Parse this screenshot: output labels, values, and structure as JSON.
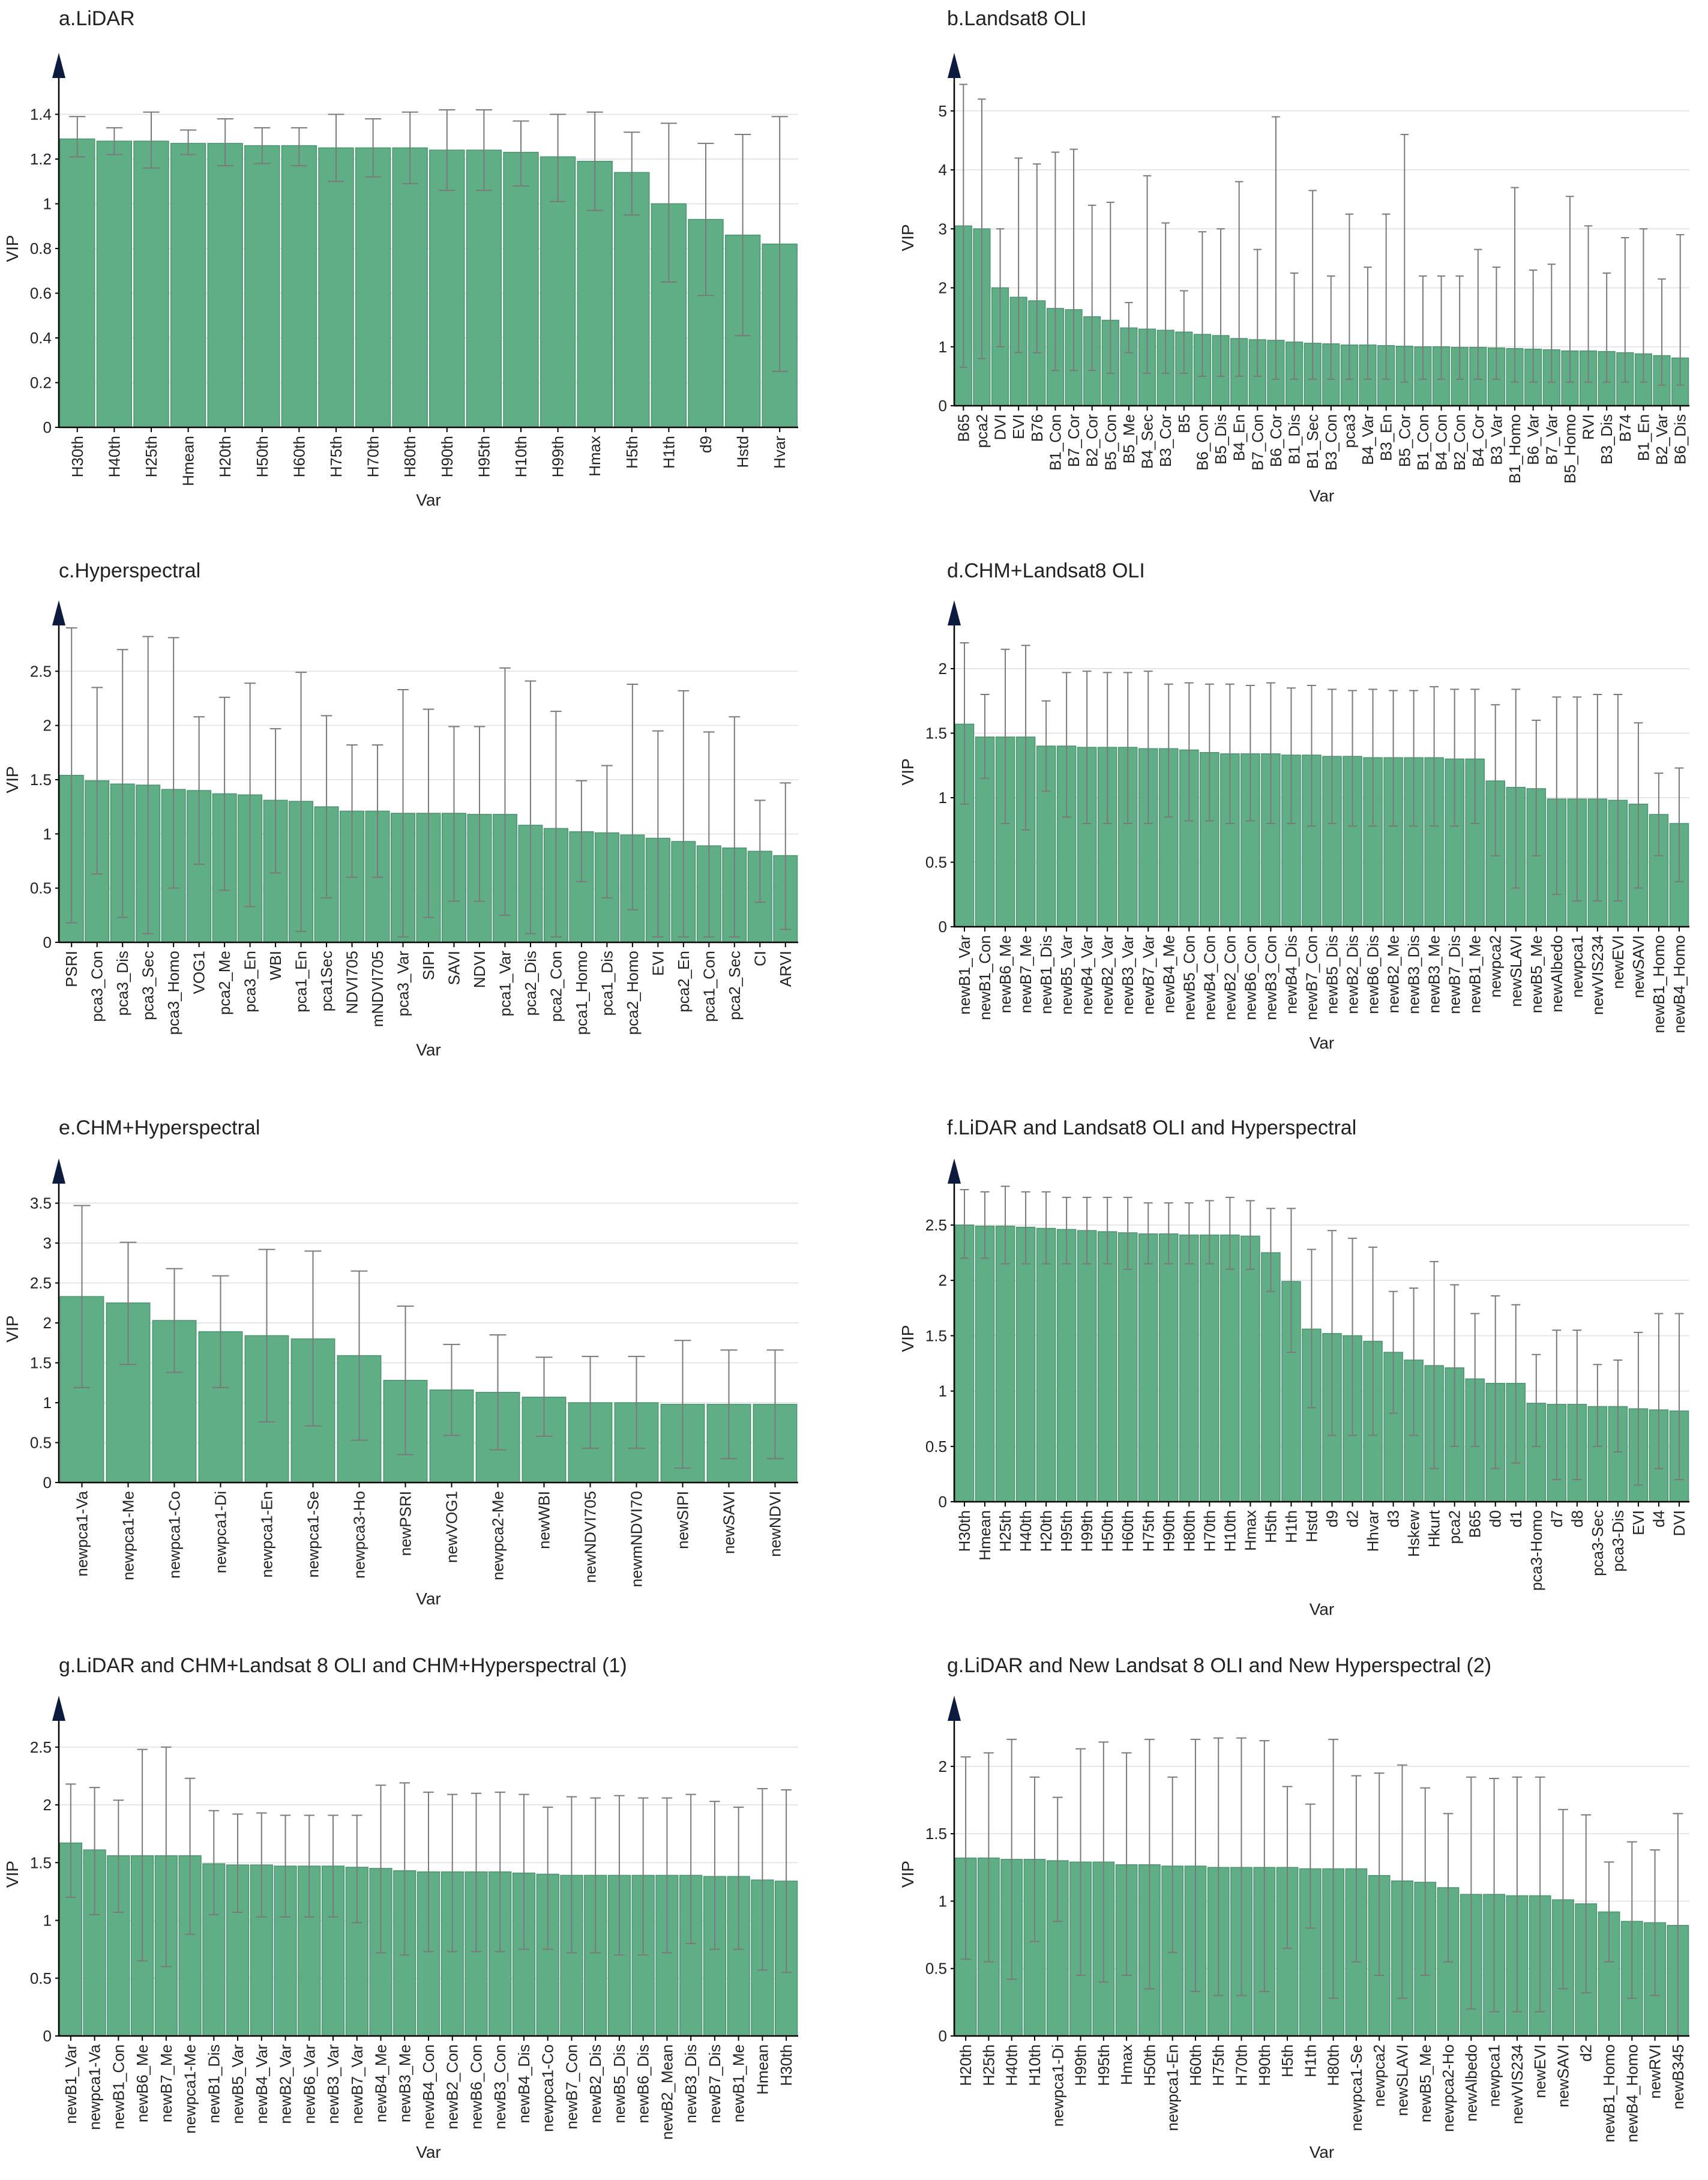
{
  "colors": {
    "bar": "#5fae85",
    "bar_edge": "#4a9470",
    "error": "#7a7a7a",
    "axis": "#000000",
    "arrow": "#0d1b3e",
    "grid": "#e6e6e6",
    "text": "#222222"
  },
  "chart_data": [
    {
      "type": "bar",
      "title": "a.LiDAR",
      "xlabel": "Var",
      "ylabel": "VIP",
      "ylim": [
        0,
        1.6
      ],
      "yticks": [
        "0",
        "0.2",
        "0.4",
        "0.6",
        "0.8",
        "1",
        "1.2",
        "1.4"
      ],
      "categories": [
        "H30th",
        "H40th",
        "H25th",
        "Hmean",
        "H20th",
        "H50th",
        "H60th",
        "H75th",
        "H70th",
        "H80th",
        "H90th",
        "H95th",
        "H10th",
        "H99th",
        "Hmax",
        "H5th",
        "H1th",
        "d9",
        "Hstd",
        "Hvar"
      ],
      "values": [
        1.29,
        1.28,
        1.28,
        1.27,
        1.27,
        1.26,
        1.26,
        1.25,
        1.25,
        1.25,
        1.24,
        1.24,
        1.23,
        1.21,
        1.19,
        1.14,
        1.0,
        0.93,
        0.86,
        0.82
      ],
      "err_low": [
        1.21,
        1.22,
        1.16,
        1.22,
        1.17,
        1.18,
        1.17,
        1.1,
        1.12,
        1.09,
        1.06,
        1.06,
        1.08,
        1.01,
        0.97,
        0.95,
        0.65,
        0.59,
        0.41,
        0.25
      ],
      "err_high": [
        1.39,
        1.34,
        1.41,
        1.33,
        1.38,
        1.34,
        1.34,
        1.4,
        1.38,
        1.41,
        1.42,
        1.42,
        1.37,
        1.4,
        1.41,
        1.32,
        1.36,
        1.27,
        1.31,
        1.39
      ]
    },
    {
      "type": "bar",
      "title": "b.Landsat8 OLI",
      "xlabel": "Var",
      "ylabel": "VIP",
      "ylim": [
        0,
        5.7
      ],
      "yticks": [
        "0",
        "1",
        "2",
        "3",
        "4",
        "5"
      ],
      "categories": [
        "B65",
        "pca2",
        "DVI",
        "EVI",
        "B76",
        "B1_Con",
        "B7_Cor",
        "B2_Cor",
        "B5_Con",
        "B5_Me",
        "B4_Sec",
        "B3_Cor",
        "B5",
        "B6_Con",
        "B5_Dis",
        "B4_En",
        "B7_Con",
        "B6_Cor",
        "B1_Dis",
        "B1_Sec",
        "B3_Con",
        "pca3",
        "B4_Var",
        "B3_En",
        "B5_Cor",
        "B1_Con",
        "B4_Con",
        "B2_Con",
        "B4_Cor",
        "B3_Var",
        "B1_Homo",
        "B6_Var",
        "B7_Var",
        "B5_Homo",
        "RVI",
        "B3_Dis",
        "B74",
        "B1_En",
        "B2_Var",
        "B6_Dis"
      ],
      "values": [
        3.05,
        3.0,
        2.0,
        1.84,
        1.78,
        1.65,
        1.63,
        1.51,
        1.45,
        1.32,
        1.3,
        1.28,
        1.25,
        1.21,
        1.19,
        1.14,
        1.12,
        1.11,
        1.08,
        1.06,
        1.05,
        1.03,
        1.03,
        1.02,
        1.01,
        1.0,
        1.0,
        0.99,
        0.99,
        0.98,
        0.97,
        0.96,
        0.95,
        0.93,
        0.93,
        0.92,
        0.9,
        0.88,
        0.85,
        0.81
      ],
      "err_low": [
        0.65,
        0.8,
        1.0,
        0.9,
        0.9,
        0.6,
        0.6,
        0.6,
        0.55,
        0.9,
        0.55,
        0.55,
        0.55,
        0.5,
        0.5,
        0.5,
        0.5,
        0.45,
        0.45,
        0.45,
        0.45,
        0.45,
        0.45,
        0.45,
        0.4,
        0.45,
        0.45,
        0.45,
        0.45,
        0.45,
        0.4,
        0.4,
        0.4,
        0.4,
        0.4,
        0.4,
        0.4,
        0.4,
        0.35,
        0.35
      ],
      "err_high": [
        5.45,
        5.2,
        3.0,
        4.2,
        4.1,
        4.3,
        4.35,
        3.4,
        3.45,
        1.75,
        3.9,
        3.1,
        1.95,
        2.95,
        3.0,
        3.8,
        2.65,
        4.9,
        2.25,
        3.65,
        2.2,
        3.25,
        2.35,
        3.25,
        4.6,
        2.2,
        2.2,
        2.2,
        2.65,
        2.35,
        3.7,
        2.3,
        2.4,
        3.55,
        3.05,
        2.25,
        2.85,
        3.0,
        2.15,
        2.9
      ]
    },
    {
      "type": "bar",
      "title": "c.Hyperspectral",
      "xlabel": "Var",
      "ylabel": "VIP",
      "ylim": [
        0,
        3.0
      ],
      "yticks": [
        "0",
        "0.5",
        "1",
        "1.5",
        "2",
        "2.5"
      ],
      "categories": [
        "PSRI",
        "pca3_Con",
        "pca3_Dis",
        "pca3_Sec",
        "pca3_Homo",
        "VOG1",
        "pca2_Me",
        "pca3_En",
        "WBI",
        "pca1_En",
        "pca1Sec",
        "NDVI705",
        "mNDVI705",
        "pca3_Var",
        "SIPI",
        "SAVI",
        "NDVI",
        "pca1_Var",
        "pca2_Dis",
        "pca2_Con",
        "pca1_Homo",
        "pca1_Dis",
        "pca2_Homo",
        "EVI",
        "pca2_En",
        "pca1_Con",
        "pca2_Sec",
        "CI",
        "ARVI"
      ],
      "values": [
        1.54,
        1.49,
        1.46,
        1.45,
        1.41,
        1.4,
        1.37,
        1.36,
        1.31,
        1.3,
        1.25,
        1.21,
        1.21,
        1.19,
        1.19,
        1.19,
        1.18,
        1.18,
        1.08,
        1.05,
        1.02,
        1.01,
        0.99,
        0.96,
        0.93,
        0.89,
        0.87,
        0.84,
        0.8
      ],
      "err_low": [
        0.18,
        0.63,
        0.23,
        0.08,
        0.5,
        0.72,
        0.48,
        0.33,
        0.64,
        0.1,
        0.41,
        0.6,
        0.6,
        0.05,
        0.23,
        0.38,
        0.38,
        0.25,
        0.08,
        0.05,
        0.56,
        0.41,
        0.3,
        0.05,
        0.05,
        0.05,
        0.05,
        0.37,
        0.12
      ],
      "err_high": [
        2.9,
        2.35,
        2.7,
        2.82,
        2.81,
        2.08,
        2.26,
        2.39,
        1.97,
        2.49,
        2.09,
        1.82,
        1.82,
        2.33,
        2.15,
        1.99,
        1.99,
        2.53,
        2.41,
        2.13,
        1.49,
        1.63,
        2.38,
        1.95,
        2.32,
        1.94,
        2.08,
        1.31,
        1.47
      ]
    },
    {
      "type": "bar",
      "title": "d.CHM+Landsat8 OLI",
      "xlabel": "Var",
      "ylabel": "VIP",
      "ylim": [
        0,
        2.4
      ],
      "yticks": [
        "0",
        "0.5",
        "1",
        "1.5",
        "2"
      ],
      "categories": [
        "newB1_Var",
        "newB1_Con",
        "newB6_Me",
        "newB7_Me",
        "newB1_Dis",
        "newB5_Var",
        "newB4_Var",
        "newB2_Var",
        "newB3_Var",
        "newB7_Var",
        "newB4_Me",
        "newB5_Con",
        "newB4_Con",
        "newB2_Con",
        "newB6_Con",
        "newB3_Con",
        "newB4_Dis",
        "newB7_Con",
        "newB5_Dis",
        "newB2_Dis",
        "newB6_Dis",
        "newB2_Me",
        "newB3_Dis",
        "newB3_Me",
        "newB7_Dis",
        "newB1_Me",
        "newpca2",
        "newSLAVI",
        "newB5_Me",
        "newAlbedo",
        "newpca1",
        "newVIS234",
        "newEVI",
        "newSAVI",
        "newB1_Homo",
        "newB4_Homo"
      ],
      "values": [
        1.57,
        1.47,
        1.47,
        1.47,
        1.4,
        1.4,
        1.39,
        1.39,
        1.39,
        1.38,
        1.38,
        1.37,
        1.35,
        1.34,
        1.34,
        1.34,
        1.33,
        1.33,
        1.32,
        1.32,
        1.31,
        1.31,
        1.31,
        1.31,
        1.3,
        1.3,
        1.13,
        1.08,
        1.07,
        0.99,
        0.99,
        0.99,
        0.98,
        0.95,
        0.87,
        0.8
      ],
      "err_low": [
        0.95,
        1.15,
        0.8,
        0.75,
        1.05,
        0.85,
        0.8,
        0.8,
        0.8,
        0.8,
        0.85,
        0.82,
        0.82,
        0.8,
        0.82,
        0.8,
        0.8,
        0.78,
        0.8,
        0.78,
        0.78,
        0.78,
        0.78,
        0.78,
        0.78,
        0.8,
        0.55,
        0.3,
        0.55,
        0.25,
        0.2,
        0.2,
        0.2,
        0.3,
        0.55,
        0.35
      ],
      "err_high": [
        2.2,
        1.8,
        2.15,
        2.18,
        1.75,
        1.97,
        1.98,
        1.97,
        1.97,
        1.98,
        1.88,
        1.89,
        1.88,
        1.88,
        1.87,
        1.89,
        1.85,
        1.87,
        1.84,
        1.83,
        1.84,
        1.83,
        1.83,
        1.86,
        1.84,
        1.84,
        1.72,
        1.84,
        1.6,
        1.78,
        1.78,
        1.8,
        1.8,
        1.58,
        1.19,
        1.23
      ]
    },
    {
      "type": "bar",
      "title": "e.CHM+Hyperspectral",
      "xlabel": "Var",
      "ylabel": "VIP",
      "ylim": [
        0,
        3.85
      ],
      "yticks": [
        "0",
        "0.5",
        "1",
        "1.5",
        "2",
        "2.5",
        "3",
        "3.5"
      ],
      "categories": [
        "newpca1-Va",
        "newpca1-Me",
        "newpca1-Co",
        "newpca1-Di",
        "newpca1-En",
        "newpca1-Se",
        "newpca3-Ho",
        "newPSRI",
        "newVOG1",
        "newpca2-Me",
        "newWBI",
        "newNDVI705",
        "newmNDVI70",
        "newSIPI",
        "newSAVI",
        "newNDVI"
      ],
      "values": [
        2.33,
        2.25,
        2.03,
        1.89,
        1.84,
        1.8,
        1.59,
        1.28,
        1.16,
        1.13,
        1.07,
        1.0,
        1.0,
        0.98,
        0.98,
        0.98
      ],
      "err_low": [
        1.19,
        1.48,
        1.38,
        1.19,
        0.76,
        0.71,
        0.53,
        0.35,
        0.59,
        0.41,
        0.58,
        0.43,
        0.43,
        0.18,
        0.3,
        0.3
      ],
      "err_high": [
        3.47,
        3.01,
        2.68,
        2.59,
        2.92,
        2.9,
        2.65,
        2.21,
        1.73,
        1.85,
        1.57,
        1.58,
        1.58,
        1.78,
        1.66,
        1.66
      ]
    },
    {
      "type": "bar",
      "title": "f.LiDAR and Landsat8 OLI and Hyperspectral",
      "xlabel": "Var",
      "ylabel": "VIP",
      "ylim": [
        0,
        2.95
      ],
      "yticks": [
        "0",
        "0.5",
        "1",
        "1.5",
        "2",
        "2.5"
      ],
      "categories": [
        "H30th",
        "Hmean",
        "H25th",
        "H40th",
        "H20th",
        "H95th",
        "H99th",
        "H50th",
        "H60th",
        "H75th",
        "H90th",
        "H80th",
        "H70th",
        "H10th",
        "Hmax",
        "H5th",
        "H1th",
        "Hstd",
        "d9",
        "d2",
        "Hhvar",
        "d3",
        "Hskew",
        "Hkurt",
        "pca2",
        "B65",
        "d0",
        "d1",
        "pca3-Homo",
        "d7",
        "d8",
        "pca3-Sec",
        "pca3-Dis",
        "EVI",
        "d4",
        "DVI"
      ],
      "values": [
        2.5,
        2.49,
        2.49,
        2.48,
        2.47,
        2.46,
        2.45,
        2.44,
        2.43,
        2.42,
        2.42,
        2.41,
        2.41,
        2.41,
        2.4,
        2.25,
        1.99,
        1.56,
        1.52,
        1.5,
        1.45,
        1.35,
        1.28,
        1.23,
        1.21,
        1.11,
        1.07,
        1.07,
        0.89,
        0.88,
        0.88,
        0.86,
        0.86,
        0.84,
        0.83,
        0.82
      ],
      "err_low": [
        2.2,
        2.2,
        2.15,
        2.15,
        2.15,
        2.15,
        2.15,
        2.15,
        2.1,
        2.15,
        2.15,
        2.15,
        2.15,
        2.1,
        2.1,
        1.9,
        1.35,
        0.85,
        0.6,
        0.6,
        0.6,
        0.8,
        0.6,
        0.3,
        0.5,
        0.5,
        0.3,
        0.35,
        0.5,
        0.2,
        0.2,
        0.5,
        0.45,
        0.15,
        0.3,
        0.2
      ],
      "err_high": [
        2.82,
        2.8,
        2.85,
        2.8,
        2.8,
        2.75,
        2.75,
        2.75,
        2.75,
        2.7,
        2.7,
        2.7,
        2.72,
        2.75,
        2.72,
        2.65,
        2.65,
        2.28,
        2.45,
        2.38,
        2.3,
        1.9,
        1.93,
        2.17,
        1.96,
        1.7,
        1.86,
        1.78,
        1.33,
        1.55,
        1.55,
        1.24,
        1.28,
        1.53,
        1.7,
        1.7
      ]
    },
    {
      "type": "bar",
      "title": "g.LiDAR and CHM+Landsat 8 OLI and CHM+Hyperspectral (1)",
      "xlabel": "Var",
      "ylabel": "VIP",
      "ylim": [
        0,
        2.8
      ],
      "yticks": [
        "0",
        "0.5",
        "1",
        "1.5",
        "2",
        "2.5"
      ],
      "categories": [
        "newB1_Var",
        "newpca1-Va",
        "newB1_Con",
        "newB6_Me",
        "newB7_Me",
        "newpca1-Me",
        "newB1_Dis",
        "newB5_Var",
        "newB4_Var",
        "newB2_Var",
        "newB6_Var",
        "newB3_Var",
        "newB7_Var",
        "newB4_Me",
        "newB3_Me",
        "newB4_Con",
        "newB2_Con",
        "newB6_Con",
        "newB3_Con",
        "newB4_Dis",
        "newpca1-Co",
        "newB7_Con",
        "newB2_Dis",
        "newB5_Dis",
        "newB6_Dis",
        "newB2_Mean",
        "newB3_Dis",
        "newB7_Dis",
        "newB1_Me",
        "Hmean",
        "H30th"
      ],
      "values": [
        1.67,
        1.61,
        1.56,
        1.56,
        1.56,
        1.56,
        1.49,
        1.48,
        1.48,
        1.47,
        1.47,
        1.47,
        1.46,
        1.45,
        1.43,
        1.42,
        1.42,
        1.42,
        1.42,
        1.41,
        1.4,
        1.39,
        1.39,
        1.39,
        1.39,
        1.39,
        1.39,
        1.38,
        1.38,
        1.35,
        1.34
      ],
      "err_low": [
        1.2,
        1.05,
        1.07,
        0.65,
        0.6,
        0.88,
        1.05,
        1.07,
        1.03,
        1.03,
        1.03,
        1.03,
        0.98,
        0.72,
        0.7,
        0.73,
        0.73,
        0.73,
        0.73,
        0.75,
        0.75,
        0.72,
        0.72,
        0.7,
        0.7,
        0.72,
        0.8,
        0.75,
        0.75,
        0.57,
        0.55
      ],
      "err_high": [
        2.18,
        2.15,
        2.04,
        2.48,
        2.5,
        2.23,
        1.95,
        1.92,
        1.93,
        1.91,
        1.91,
        1.91,
        1.91,
        2.17,
        2.19,
        2.11,
        2.09,
        2.1,
        2.11,
        2.09,
        1.98,
        2.07,
        2.06,
        2.08,
        2.06,
        2.06,
        2.09,
        2.03,
        1.98,
        2.14,
        2.13
      ]
    },
    {
      "type": "bar",
      "title": "g.LiDAR and New Landsat 8 OLI and New Hyperspectral (2)",
      "xlabel": "Var",
      "ylabel": "VIP",
      "ylim": [
        0,
        2.4
      ],
      "yticks": [
        "0",
        "0.5",
        "1",
        "1.5",
        "2"
      ],
      "categories": [
        "H20th",
        "H25th",
        "H40th",
        "H10th",
        "newpca1-Di",
        "H99th",
        "H95th",
        "Hmax",
        "H50th",
        "newpca1-En",
        "H60th",
        "H75th",
        "H70th",
        "H90th",
        "H5th",
        "H1th",
        "H80th",
        "newpca1-Se",
        "newpca2",
        "newSLAVI",
        "newB5_Me",
        "newpca2-Ho",
        "newAlbedo",
        "newpca1",
        "newVIS234",
        "newEVI",
        "newSAVI",
        "d2",
        "newB1_Homo",
        "newB4_Homo",
        "newRVI",
        "newB345"
      ],
      "values": [
        1.32,
        1.32,
        1.31,
        1.31,
        1.3,
        1.29,
        1.29,
        1.27,
        1.27,
        1.26,
        1.26,
        1.25,
        1.25,
        1.25,
        1.25,
        1.24,
        1.24,
        1.24,
        1.19,
        1.15,
        1.14,
        1.1,
        1.05,
        1.05,
        1.04,
        1.04,
        1.01,
        0.98,
        0.92,
        0.85,
        0.84,
        0.82
      ],
      "err_low": [
        0.57,
        0.55,
        0.42,
        0.7,
        0.85,
        0.45,
        0.4,
        0.45,
        0.35,
        0.62,
        0.33,
        0.3,
        0.3,
        0.33,
        0.65,
        0.8,
        0.28,
        0.55,
        0.45,
        0.28,
        0.45,
        0.55,
        0.2,
        0.18,
        0.18,
        0.18,
        0.35,
        0.32,
        0.55,
        0.28,
        0.3,
        0.0
      ],
      "err_high": [
        2.07,
        2.1,
        2.2,
        1.92,
        1.77,
        2.13,
        2.18,
        2.1,
        2.2,
        1.92,
        2.2,
        2.21,
        2.21,
        2.19,
        1.85,
        1.72,
        2.2,
        1.93,
        1.95,
        2.01,
        1.84,
        1.65,
        1.92,
        1.91,
        1.92,
        1.92,
        1.68,
        1.64,
        1.29,
        1.44,
        1.38,
        1.65
      ]
    }
  ]
}
